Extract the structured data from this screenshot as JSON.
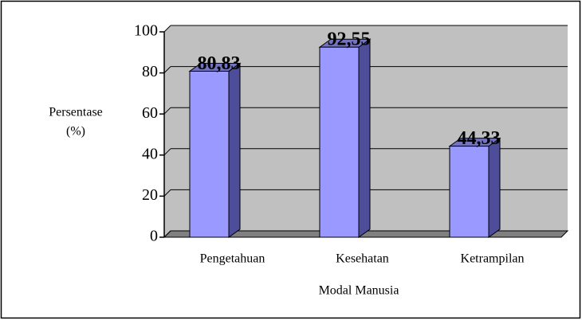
{
  "chart_data": {
    "type": "bar3d",
    "categories": [
      "Pengetahuan",
      "Kesehatan",
      "Ketrampilan"
    ],
    "values": [
      80.83,
      92.55,
      44.33
    ],
    "value_labels": [
      "80,83",
      "92,55",
      "44,33"
    ],
    "color": "#9999ff",
    "ylabel": [
      "Persentase",
      "(%)"
    ],
    "xlabel": "Modal Manusia",
    "ylim": [
      0,
      100
    ],
    "yticks": [
      0,
      20,
      40,
      60,
      80,
      100
    ],
    "grid": true
  }
}
